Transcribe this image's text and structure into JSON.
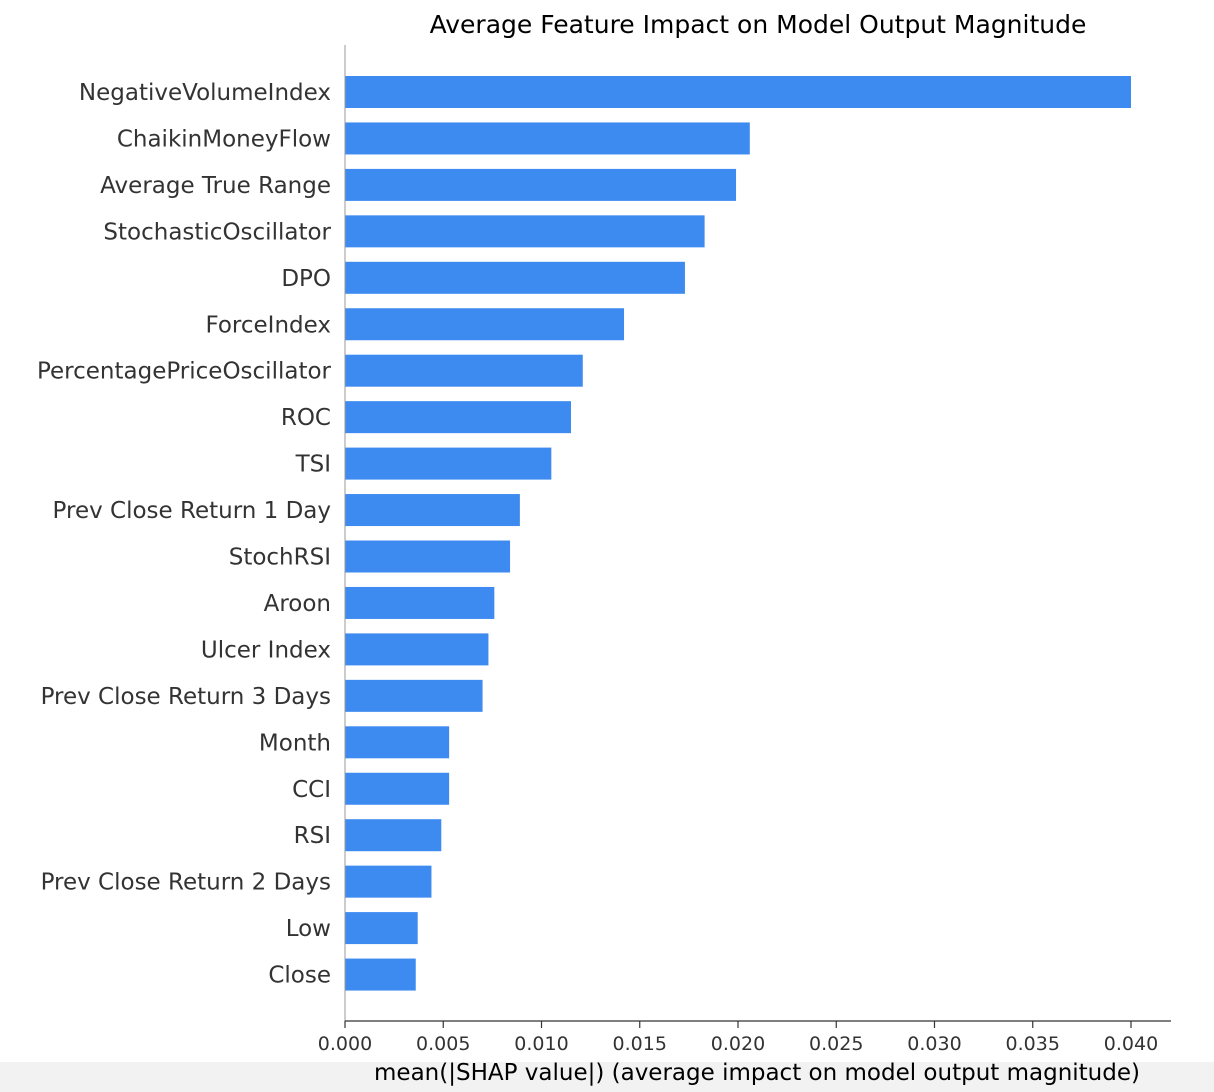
{
  "chart_data": {
    "type": "bar",
    "orientation": "horizontal",
    "title": "Average Feature Impact on Model Output Magnitude",
    "xlabel": "mean(|SHAP value|) (average impact on model output magnitude)",
    "ylabel": "",
    "xlim": [
      0,
      0.042
    ],
    "xticks": [
      0.0,
      0.005,
      0.01,
      0.015,
      0.02,
      0.025,
      0.03,
      0.035,
      0.04
    ],
    "xtick_labels": [
      "0.000",
      "0.005",
      "0.010",
      "0.015",
      "0.020",
      "0.025",
      "0.030",
      "0.035",
      "0.040"
    ],
    "grid": false,
    "bar_color": "#3d8af0",
    "categories": [
      "NegativeVolumeIndex",
      "ChaikinMoneyFlow",
      "Average True Range",
      "StochasticOscillator",
      "DPO",
      "ForceIndex",
      "PercentagePriceOscillator",
      "ROC",
      "TSI",
      "Prev Close Return 1 Day",
      "StochRSI",
      "Aroon",
      "Ulcer Index",
      "Prev Close Return 3 Days",
      "Month",
      "CCI",
      "RSI",
      "Prev Close Return 2 Days",
      "Low",
      "Close"
    ],
    "values": [
      0.04,
      0.0206,
      0.0199,
      0.0183,
      0.0173,
      0.0142,
      0.0121,
      0.0115,
      0.0105,
      0.0089,
      0.0084,
      0.0076,
      0.0073,
      0.007,
      0.0053,
      0.0053,
      0.0049,
      0.0044,
      0.0037,
      0.0036
    ]
  }
}
